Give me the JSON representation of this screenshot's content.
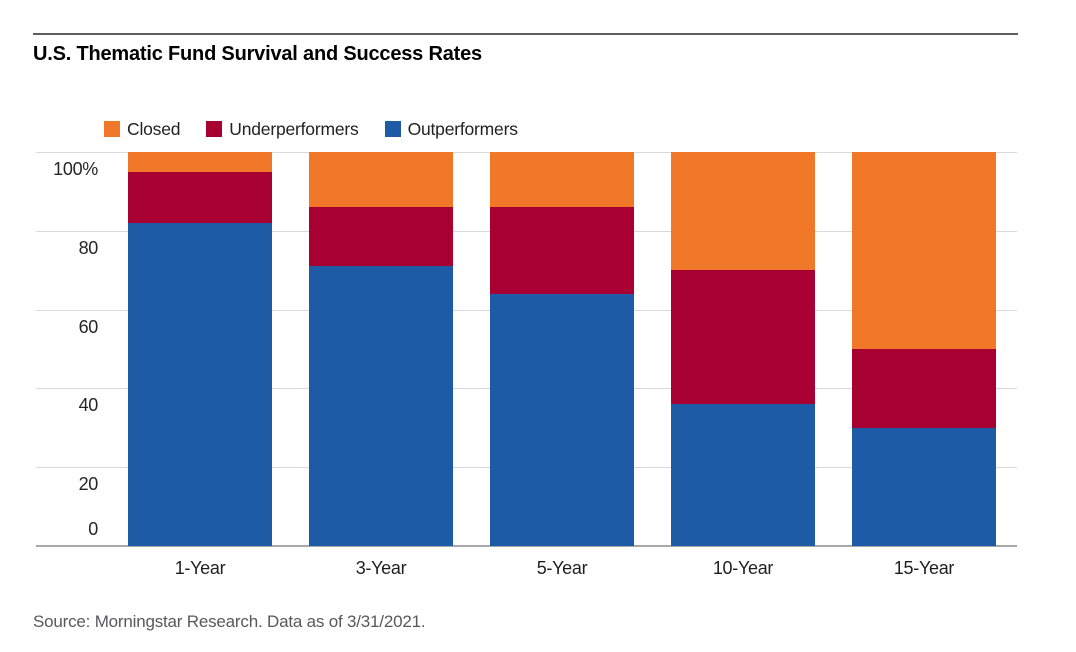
{
  "title": "U.S. Thematic Fund Survival and Success Rates",
  "source": "Source: Morningstar Research. Data as of 3/31/2021.",
  "colors": {
    "closed": "#f07828",
    "underperformers": "#a80033",
    "outperformers": "#1e5ba7",
    "gridline": "#d9d9d9",
    "axis_line": "#a8a8a8",
    "top_rule": "#5e5f61"
  },
  "legend": [
    {
      "label": "Closed",
      "color": "#f07828"
    },
    {
      "label": "Underperformers",
      "color": "#a80033"
    },
    {
      "label": "Outperformers",
      "color": "#1e5ba7"
    }
  ],
  "chart_data": {
    "type": "bar",
    "stacked": true,
    "title": "U.S. Thematic Fund Survival and Success Rates",
    "categories": [
      "1-Year",
      "3-Year",
      "5-Year",
      "10-Year",
      "15-Year"
    ],
    "series": [
      {
        "name": "Outperformers",
        "color": "#1e5ba7",
        "values": [
          82,
          71,
          64,
          36,
          30
        ]
      },
      {
        "name": "Underperformers",
        "color": "#a80033",
        "values": [
          13,
          15,
          22,
          34,
          20
        ]
      },
      {
        "name": "Closed",
        "color": "#f07828",
        "values": [
          5,
          14,
          14,
          30,
          50
        ]
      }
    ],
    "xlabel": "",
    "ylabel": "",
    "ylim": [
      0,
      100
    ],
    "ytick_labels": [
      "100%",
      "80",
      "60",
      "40",
      "20",
      "0"
    ],
    "grid": true,
    "legend_position": "top"
  }
}
